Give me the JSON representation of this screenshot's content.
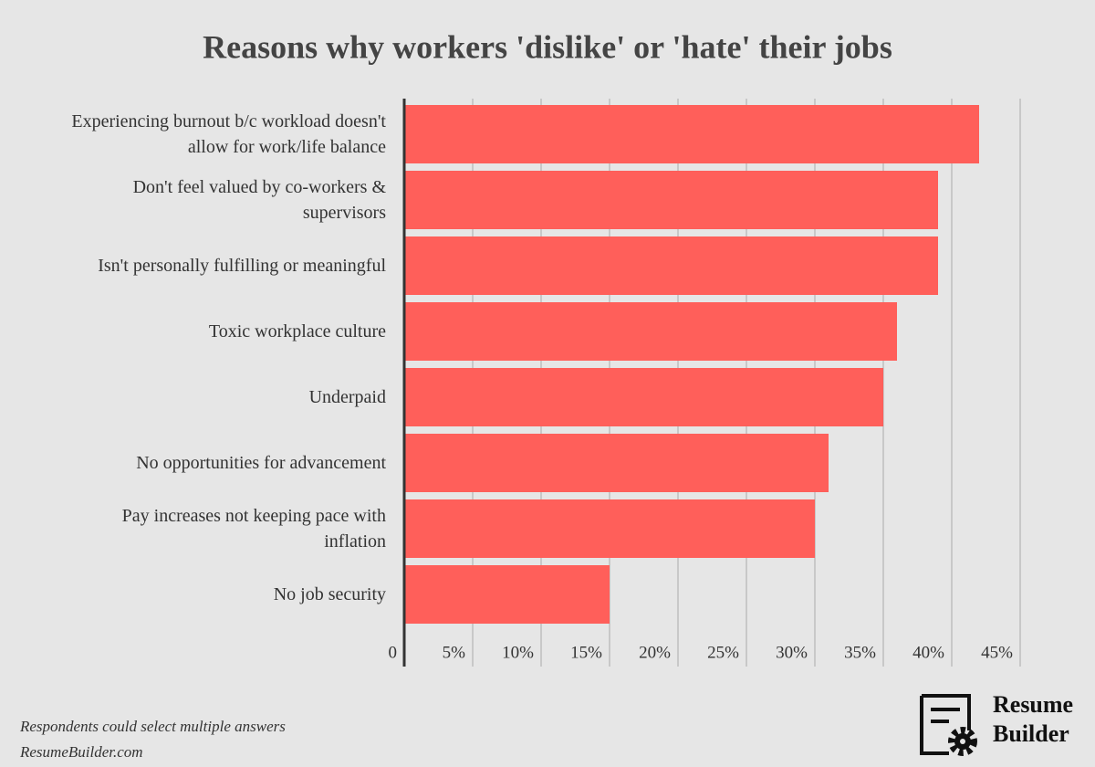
{
  "chart_data": {
    "type": "hbar",
    "title": "Reasons why workers 'dislike' or 'hate' their jobs",
    "categories": [
      "Experiencing burnout b/c workload doesn't allow for work/life balance",
      "Don't feel valued by co-workers & supervisors",
      "Isn't personally fulfilling or meaningful",
      "Toxic workplace culture",
      "Underpaid",
      "No opportunities for advancement",
      "Pay increases not keeping pace with inflation",
      "No job security"
    ],
    "values": [
      42,
      39,
      39,
      36,
      35,
      31,
      30,
      15
    ],
    "color": "#ff5f5a",
    "xlim": [
      0,
      45
    ],
    "xticks": [
      0,
      {
        "value": 5,
        "label": "5%"
      },
      {
        "value": 10,
        "label": "10%"
      },
      {
        "value": 15,
        "label": "15%"
      },
      {
        "value": 20,
        "label": "20%"
      },
      {
        "value": 25,
        "label": "25%"
      },
      {
        "value": 30,
        "label": "30%"
      },
      {
        "value": 35,
        "label": "35%"
      },
      {
        "value": 40,
        "label": "40%"
      },
      {
        "value": 45,
        "label": "45%"
      }
    ],
    "grid": true,
    "note": "Respondents could select multiple answers",
    "source": "ResumeBuilder.com",
    "logo": [
      "Resume",
      "Builder"
    ]
  }
}
